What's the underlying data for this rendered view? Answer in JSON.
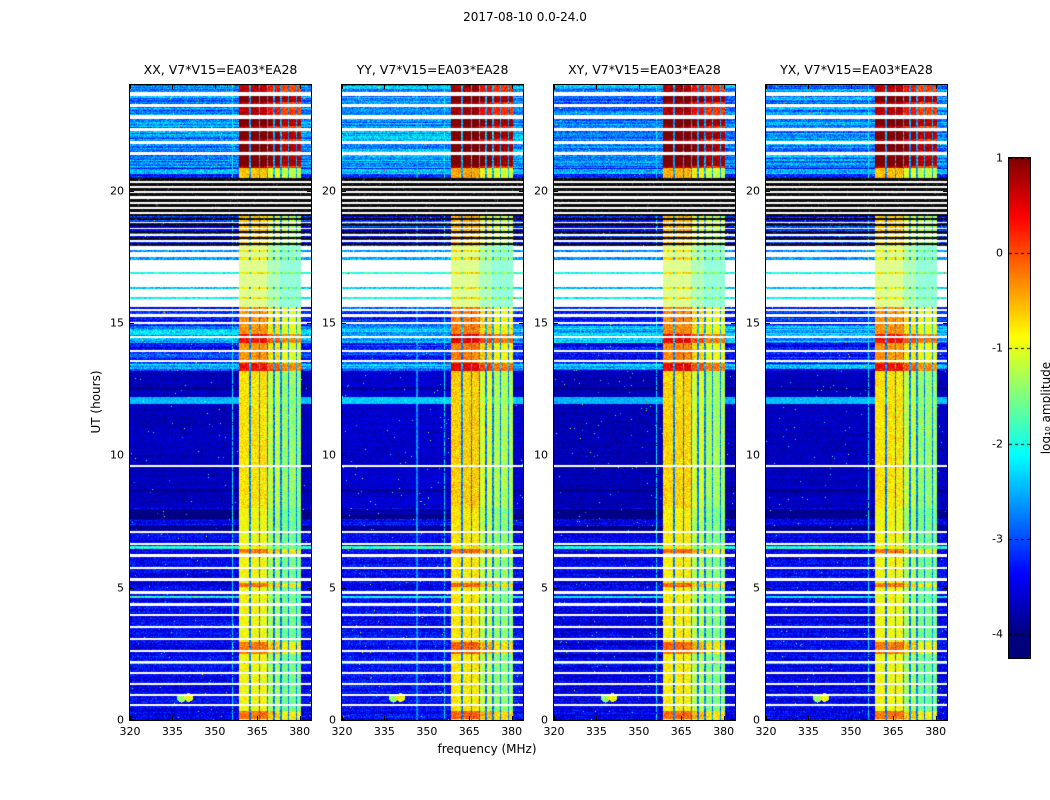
{
  "figure": {
    "title": "2017-08-10 0.0-24.0"
  },
  "panels": [
    {
      "title": "XX, V7*V15=EA03*EA28",
      "seed": 101,
      "level_offset": 0,
      "boost_offset": 0,
      "faint_lines_mhz": []
    },
    {
      "title": "YY, V7*V15=EA03*EA28",
      "seed": 202,
      "level_offset": 0.08,
      "boost_offset": 0.12,
      "faint_lines_mhz": [
        346.5
      ]
    },
    {
      "title": "XY, V7*V15=EA03*EA28",
      "seed": 303,
      "level_offset": -0.04,
      "boost_offset": 0.08,
      "faint_lines_mhz": []
    },
    {
      "title": "YX, V7*V15=EA03*EA28",
      "seed": 404,
      "level_offset": 0,
      "boost_offset": 0,
      "faint_lines_mhz": []
    }
  ],
  "axes": {
    "x_label": "frequency (MHz)",
    "y_label": "UT (hours)",
    "x_ticks": [
      320,
      335,
      350,
      365,
      380
    ],
    "y_ticks": [
      0,
      5,
      10,
      15,
      20
    ],
    "x_range": [
      320,
      384
    ],
    "y_range": [
      0,
      24
    ]
  },
  "colorbar": {
    "label": "log₁₀ amplitude",
    "ticks": [
      1,
      0,
      -1,
      -2,
      -3,
      -4
    ],
    "vmax": 1,
    "vmin": -4,
    "bar_min": -4.25,
    "colormap": "jet"
  },
  "chart_data": {
    "type": "heatmap",
    "title": "2017-08-10 0.0-24.0",
    "xlabel": "frequency (MHz)",
    "ylabel": "UT (hours)",
    "panels": [
      "XX, V7*V15=EA03*EA28",
      "YY, V7*V15=EA03*EA28",
      "XY, V7*V15=EA03*EA28",
      "YX, V7*V15=EA03*EA28"
    ],
    "value_scale": "log10 amplitude",
    "value_range": [
      -4,
      1
    ],
    "colormap": "jet",
    "x_range_mhz": [
      320,
      384
    ],
    "y_range_hours": [
      0,
      24
    ],
    "rfi_subbands": [
      {
        "f": [
          358.5,
          368.5
        ],
        "level": -0.9
      },
      {
        "f": [
          368.5,
          373.0
        ],
        "level": -1.3
      },
      {
        "f": [
          373.0,
          380.5
        ],
        "level": -1.55
      }
    ],
    "rfi_notches_mhz": [
      362.5,
      365.8,
      368.6,
      371.0,
      373.4,
      376.0,
      378.8
    ],
    "narrow_lines_mhz": [
      356.2
    ],
    "time_segments": [
      {
        "ut": [
          0.0,
          8.0
        ],
        "bg": "blue",
        "bg_level": -3.45,
        "rfi_boost": 0.0,
        "streak": 0.35
      },
      {
        "ut": [
          8.0,
          13.2
        ],
        "bg": "quiet",
        "bg_level": -3.7,
        "rfi_boost": 0.15,
        "streak": 0.12
      },
      {
        "ut": [
          13.2,
          15.6
        ],
        "bg": "active",
        "bg_level": -3.25,
        "rfi_boost": 0.55,
        "streak": 0.8
      },
      {
        "ut": [
          15.6,
          17.9
        ],
        "bg": "white",
        "bg_level": null,
        "rfi_boost": 0.1,
        "streak": 0
      },
      {
        "ut": [
          17.9,
          19.05
        ],
        "bg": "striped",
        "bg_level": -3.3,
        "rfi_boost": 0.3,
        "streak": 0.9
      },
      {
        "ut": [
          19.05,
          20.5
        ],
        "bg": "black",
        "bg_level": null,
        "rfi_boost": null,
        "streak": 0
      },
      {
        "ut": [
          20.5,
          20.85
        ],
        "bg": "blue",
        "bg_level": -3.3,
        "rfi_boost": 0.35,
        "streak": 0.4
      },
      {
        "ut": [
          20.85,
          24.0
        ],
        "bg": "bright",
        "bg_level": -2.7,
        "rfi_boost": 1.6,
        "streak": 0.8
      }
    ],
    "flagged_white_rows_ut": [
      [
        0.52,
        0.6
      ],
      [
        0.92,
        1.0
      ],
      [
        1.32,
        1.4
      ],
      [
        1.72,
        1.8
      ],
      [
        2.16,
        2.24
      ],
      [
        2.56,
        2.66
      ],
      [
        3.02,
        3.1
      ],
      [
        3.46,
        3.56
      ],
      [
        3.92,
        4.0
      ],
      [
        4.32,
        4.42
      ],
      [
        4.78,
        4.86
      ],
      [
        5.26,
        5.36
      ],
      [
        5.72,
        5.8
      ],
      [
        6.16,
        6.26
      ],
      [
        6.62,
        6.7
      ],
      [
        7.06,
        7.14
      ],
      [
        9.58,
        9.64
      ],
      [
        13.52,
        13.6
      ],
      [
        13.92,
        14.0
      ],
      [
        14.42,
        14.5
      ],
      [
        14.95,
        15.03
      ],
      [
        15.25,
        15.33
      ],
      [
        15.45,
        15.52
      ],
      [
        18.08,
        18.13
      ],
      [
        18.31,
        18.36
      ],
      [
        18.55,
        18.6
      ],
      [
        18.79,
        18.84
      ],
      [
        21.35,
        21.48
      ],
      [
        21.78,
        21.9
      ],
      [
        22.25,
        22.38
      ],
      [
        22.72,
        22.85
      ],
      [
        23.18,
        23.3
      ],
      [
        23.6,
        23.72
      ]
    ],
    "white_rows_in_black_ut": [
      19.15,
      19.35,
      19.55,
      19.75,
      19.95,
      20.15,
      20.35
    ],
    "black_rows_ut": [
      [
        17.95,
        18.02
      ],
      [
        18.18,
        18.26
      ],
      [
        18.42,
        18.5
      ],
      [
        18.66,
        18.74
      ],
      [
        18.88,
        18.96
      ]
    ],
    "colored_rows_in_white_ut": [
      [
        15.9,
        15.98,
        -2.1
      ],
      [
        16.3,
        16.38,
        -2.4
      ],
      [
        16.85,
        16.95,
        -2.0
      ],
      [
        17.4,
        17.5,
        -2.6
      ],
      [
        17.7,
        17.78,
        -2.7
      ]
    ],
    "cyan_rows_ut": [
      [
        11.95,
        12.2
      ],
      [
        13.25,
        13.45
      ],
      [
        14.25,
        14.9
      ],
      [
        20.62,
        20.82
      ]
    ],
    "dark_rows_ut": [
      [
        7.15,
        7.32
      ],
      [
        7.6,
        7.98
      ],
      [
        8.62,
        8.72
      ],
      [
        12.48,
        12.58
      ]
    ],
    "bright_rows_ut": [
      [
        2.1,
        2.16
      ],
      [
        4.62,
        4.7
      ],
      [
        6.48,
        6.56
      ]
    ],
    "band_hot_rows_ut": [
      [
        0.05,
        0.35
      ],
      [
        2.5,
        2.95
      ],
      [
        5.02,
        5.18
      ],
      [
        6.3,
        6.45
      ],
      [
        13.2,
        13.5
      ],
      [
        14.25,
        14.6
      ],
      [
        20.95,
        21.3
      ],
      [
        21.5,
        21.78
      ],
      [
        21.95,
        22.22
      ],
      [
        22.45,
        22.7
      ],
      [
        23.35,
        23.58
      ]
    ],
    "hot_spots": [
      {
        "f": 340.8,
        "ut": 0.85,
        "level": -0.9
      },
      {
        "f": 338.2,
        "ut": 0.82,
        "level": -1.4
      }
    ]
  }
}
